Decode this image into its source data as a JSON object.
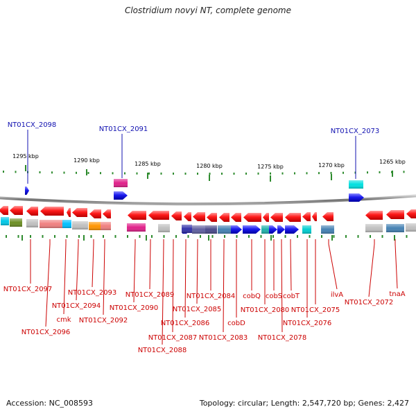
{
  "title": "Clostridium novyi NT, complete genome",
  "footer": {
    "accession": "Accession: NC_008593",
    "topology": "Topology: circular; Length: 2,547,720 bp; Genes: 2,427"
  },
  "colors": {
    "backbone": "#808080",
    "tick": "#2e8b2e",
    "forward_gene": "#1515ee",
    "reverse_gene": "#ee1111",
    "upper_label": "#1010b0",
    "lower_label": "#cc0000"
  },
  "ruler": [
    "1295 kbp",
    "1290 kbp",
    "1285 kbp",
    "1280 kbp",
    "1275 kbp",
    "1270 kbp",
    "1265 kbp"
  ],
  "upper_labels": [
    "NT01CX_2098",
    "NT01CX_2091",
    "NT01CX_2073"
  ],
  "lower_labels": [
    "NT01CX_2097",
    "NT01CX_2096",
    "cmk",
    "NT01CX_2094",
    "NT01CX_2093",
    "NT01CX_2092",
    "NT01CX_2090",
    "NT01CX_2089",
    "NT01CX_2088",
    "NT01CX_2087",
    "NT01CX_2086",
    "NT01CX_2085",
    "NT01CX_2084",
    "NT01CX_2083",
    "cobD",
    "cobQ",
    "NT01CX_2080",
    "cobS",
    "NT01CX_2078",
    "cobT",
    "NT01CX_2076",
    "NT01CX_2075",
    "ilvA",
    "NT01CX_2072",
    "tnaA"
  ]
}
